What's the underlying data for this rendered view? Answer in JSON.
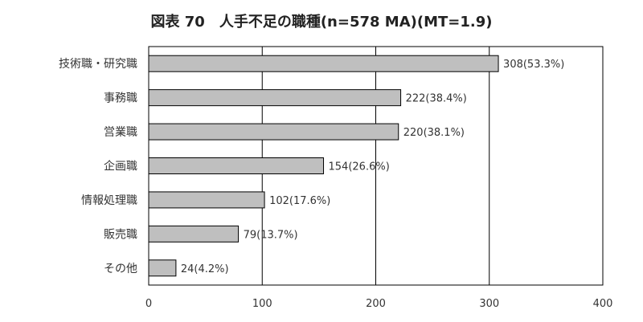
{
  "chart_data": {
    "type": "bar",
    "orientation": "horizontal",
    "title": "図表 70　人手不足の職種(n=578 MA)(MT=1.9)",
    "categories": [
      "技術職・研究職",
      "事務職",
      "営業職",
      "企画職",
      "情報処理職",
      "販売職",
      "その他"
    ],
    "values": [
      308,
      222,
      220,
      154,
      102,
      79,
      24
    ],
    "data_labels": [
      "308(53.3%)",
      "222(38.4%)",
      "220(38.1%)",
      "154(26.6%)",
      "102(17.6%)",
      "79(13.7%)",
      "24(4.2%)"
    ],
    "xlim": [
      0,
      400
    ],
    "xticks": [
      "0",
      "100",
      "200",
      "300",
      "400"
    ],
    "xlabel": "",
    "ylabel": "",
    "grid": true,
    "legend": "none",
    "colors": {
      "bar_fill": "#bfbfbf",
      "bar_stroke": "#000000"
    }
  }
}
